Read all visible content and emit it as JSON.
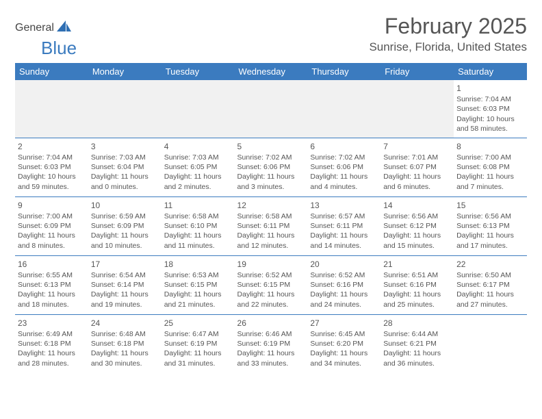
{
  "logo": {
    "text1": "General",
    "text2": "Blue"
  },
  "title": "February 2025",
  "location": "Sunrise, Florida, United States",
  "colors": {
    "header_bg": "#3b7bbf",
    "header_text": "#ffffff",
    "text": "#555555",
    "row_border": "#3b7bbf",
    "empty_bg": "#f1f1f1"
  },
  "weekdays": [
    "Sunday",
    "Monday",
    "Tuesday",
    "Wednesday",
    "Thursday",
    "Friday",
    "Saturday"
  ],
  "weeks": [
    [
      null,
      null,
      null,
      null,
      null,
      null,
      {
        "n": "1",
        "sr": "7:04 AM",
        "ss": "6:03 PM",
        "dl": "10 hours and 58 minutes."
      }
    ],
    [
      {
        "n": "2",
        "sr": "7:04 AM",
        "ss": "6:03 PM",
        "dl": "10 hours and 59 minutes."
      },
      {
        "n": "3",
        "sr": "7:03 AM",
        "ss": "6:04 PM",
        "dl": "11 hours and 0 minutes."
      },
      {
        "n": "4",
        "sr": "7:03 AM",
        "ss": "6:05 PM",
        "dl": "11 hours and 2 minutes."
      },
      {
        "n": "5",
        "sr": "7:02 AM",
        "ss": "6:06 PM",
        "dl": "11 hours and 3 minutes."
      },
      {
        "n": "6",
        "sr": "7:02 AM",
        "ss": "6:06 PM",
        "dl": "11 hours and 4 minutes."
      },
      {
        "n": "7",
        "sr": "7:01 AM",
        "ss": "6:07 PM",
        "dl": "11 hours and 6 minutes."
      },
      {
        "n": "8",
        "sr": "7:00 AM",
        "ss": "6:08 PM",
        "dl": "11 hours and 7 minutes."
      }
    ],
    [
      {
        "n": "9",
        "sr": "7:00 AM",
        "ss": "6:09 PM",
        "dl": "11 hours and 8 minutes."
      },
      {
        "n": "10",
        "sr": "6:59 AM",
        "ss": "6:09 PM",
        "dl": "11 hours and 10 minutes."
      },
      {
        "n": "11",
        "sr": "6:58 AM",
        "ss": "6:10 PM",
        "dl": "11 hours and 11 minutes."
      },
      {
        "n": "12",
        "sr": "6:58 AM",
        "ss": "6:11 PM",
        "dl": "11 hours and 12 minutes."
      },
      {
        "n": "13",
        "sr": "6:57 AM",
        "ss": "6:11 PM",
        "dl": "11 hours and 14 minutes."
      },
      {
        "n": "14",
        "sr": "6:56 AM",
        "ss": "6:12 PM",
        "dl": "11 hours and 15 minutes."
      },
      {
        "n": "15",
        "sr": "6:56 AM",
        "ss": "6:13 PM",
        "dl": "11 hours and 17 minutes."
      }
    ],
    [
      {
        "n": "16",
        "sr": "6:55 AM",
        "ss": "6:13 PM",
        "dl": "11 hours and 18 minutes."
      },
      {
        "n": "17",
        "sr": "6:54 AM",
        "ss": "6:14 PM",
        "dl": "11 hours and 19 minutes."
      },
      {
        "n": "18",
        "sr": "6:53 AM",
        "ss": "6:15 PM",
        "dl": "11 hours and 21 minutes."
      },
      {
        "n": "19",
        "sr": "6:52 AM",
        "ss": "6:15 PM",
        "dl": "11 hours and 22 minutes."
      },
      {
        "n": "20",
        "sr": "6:52 AM",
        "ss": "6:16 PM",
        "dl": "11 hours and 24 minutes."
      },
      {
        "n": "21",
        "sr": "6:51 AM",
        "ss": "6:16 PM",
        "dl": "11 hours and 25 minutes."
      },
      {
        "n": "22",
        "sr": "6:50 AM",
        "ss": "6:17 PM",
        "dl": "11 hours and 27 minutes."
      }
    ],
    [
      {
        "n": "23",
        "sr": "6:49 AM",
        "ss": "6:18 PM",
        "dl": "11 hours and 28 minutes."
      },
      {
        "n": "24",
        "sr": "6:48 AM",
        "ss": "6:18 PM",
        "dl": "11 hours and 30 minutes."
      },
      {
        "n": "25",
        "sr": "6:47 AM",
        "ss": "6:19 PM",
        "dl": "11 hours and 31 minutes."
      },
      {
        "n": "26",
        "sr": "6:46 AM",
        "ss": "6:19 PM",
        "dl": "11 hours and 33 minutes."
      },
      {
        "n": "27",
        "sr": "6:45 AM",
        "ss": "6:20 PM",
        "dl": "11 hours and 34 minutes."
      },
      {
        "n": "28",
        "sr": "6:44 AM",
        "ss": "6:21 PM",
        "dl": "11 hours and 36 minutes."
      },
      null
    ]
  ],
  "labels": {
    "sunrise": "Sunrise:",
    "sunset": "Sunset:",
    "daylight": "Daylight:"
  }
}
